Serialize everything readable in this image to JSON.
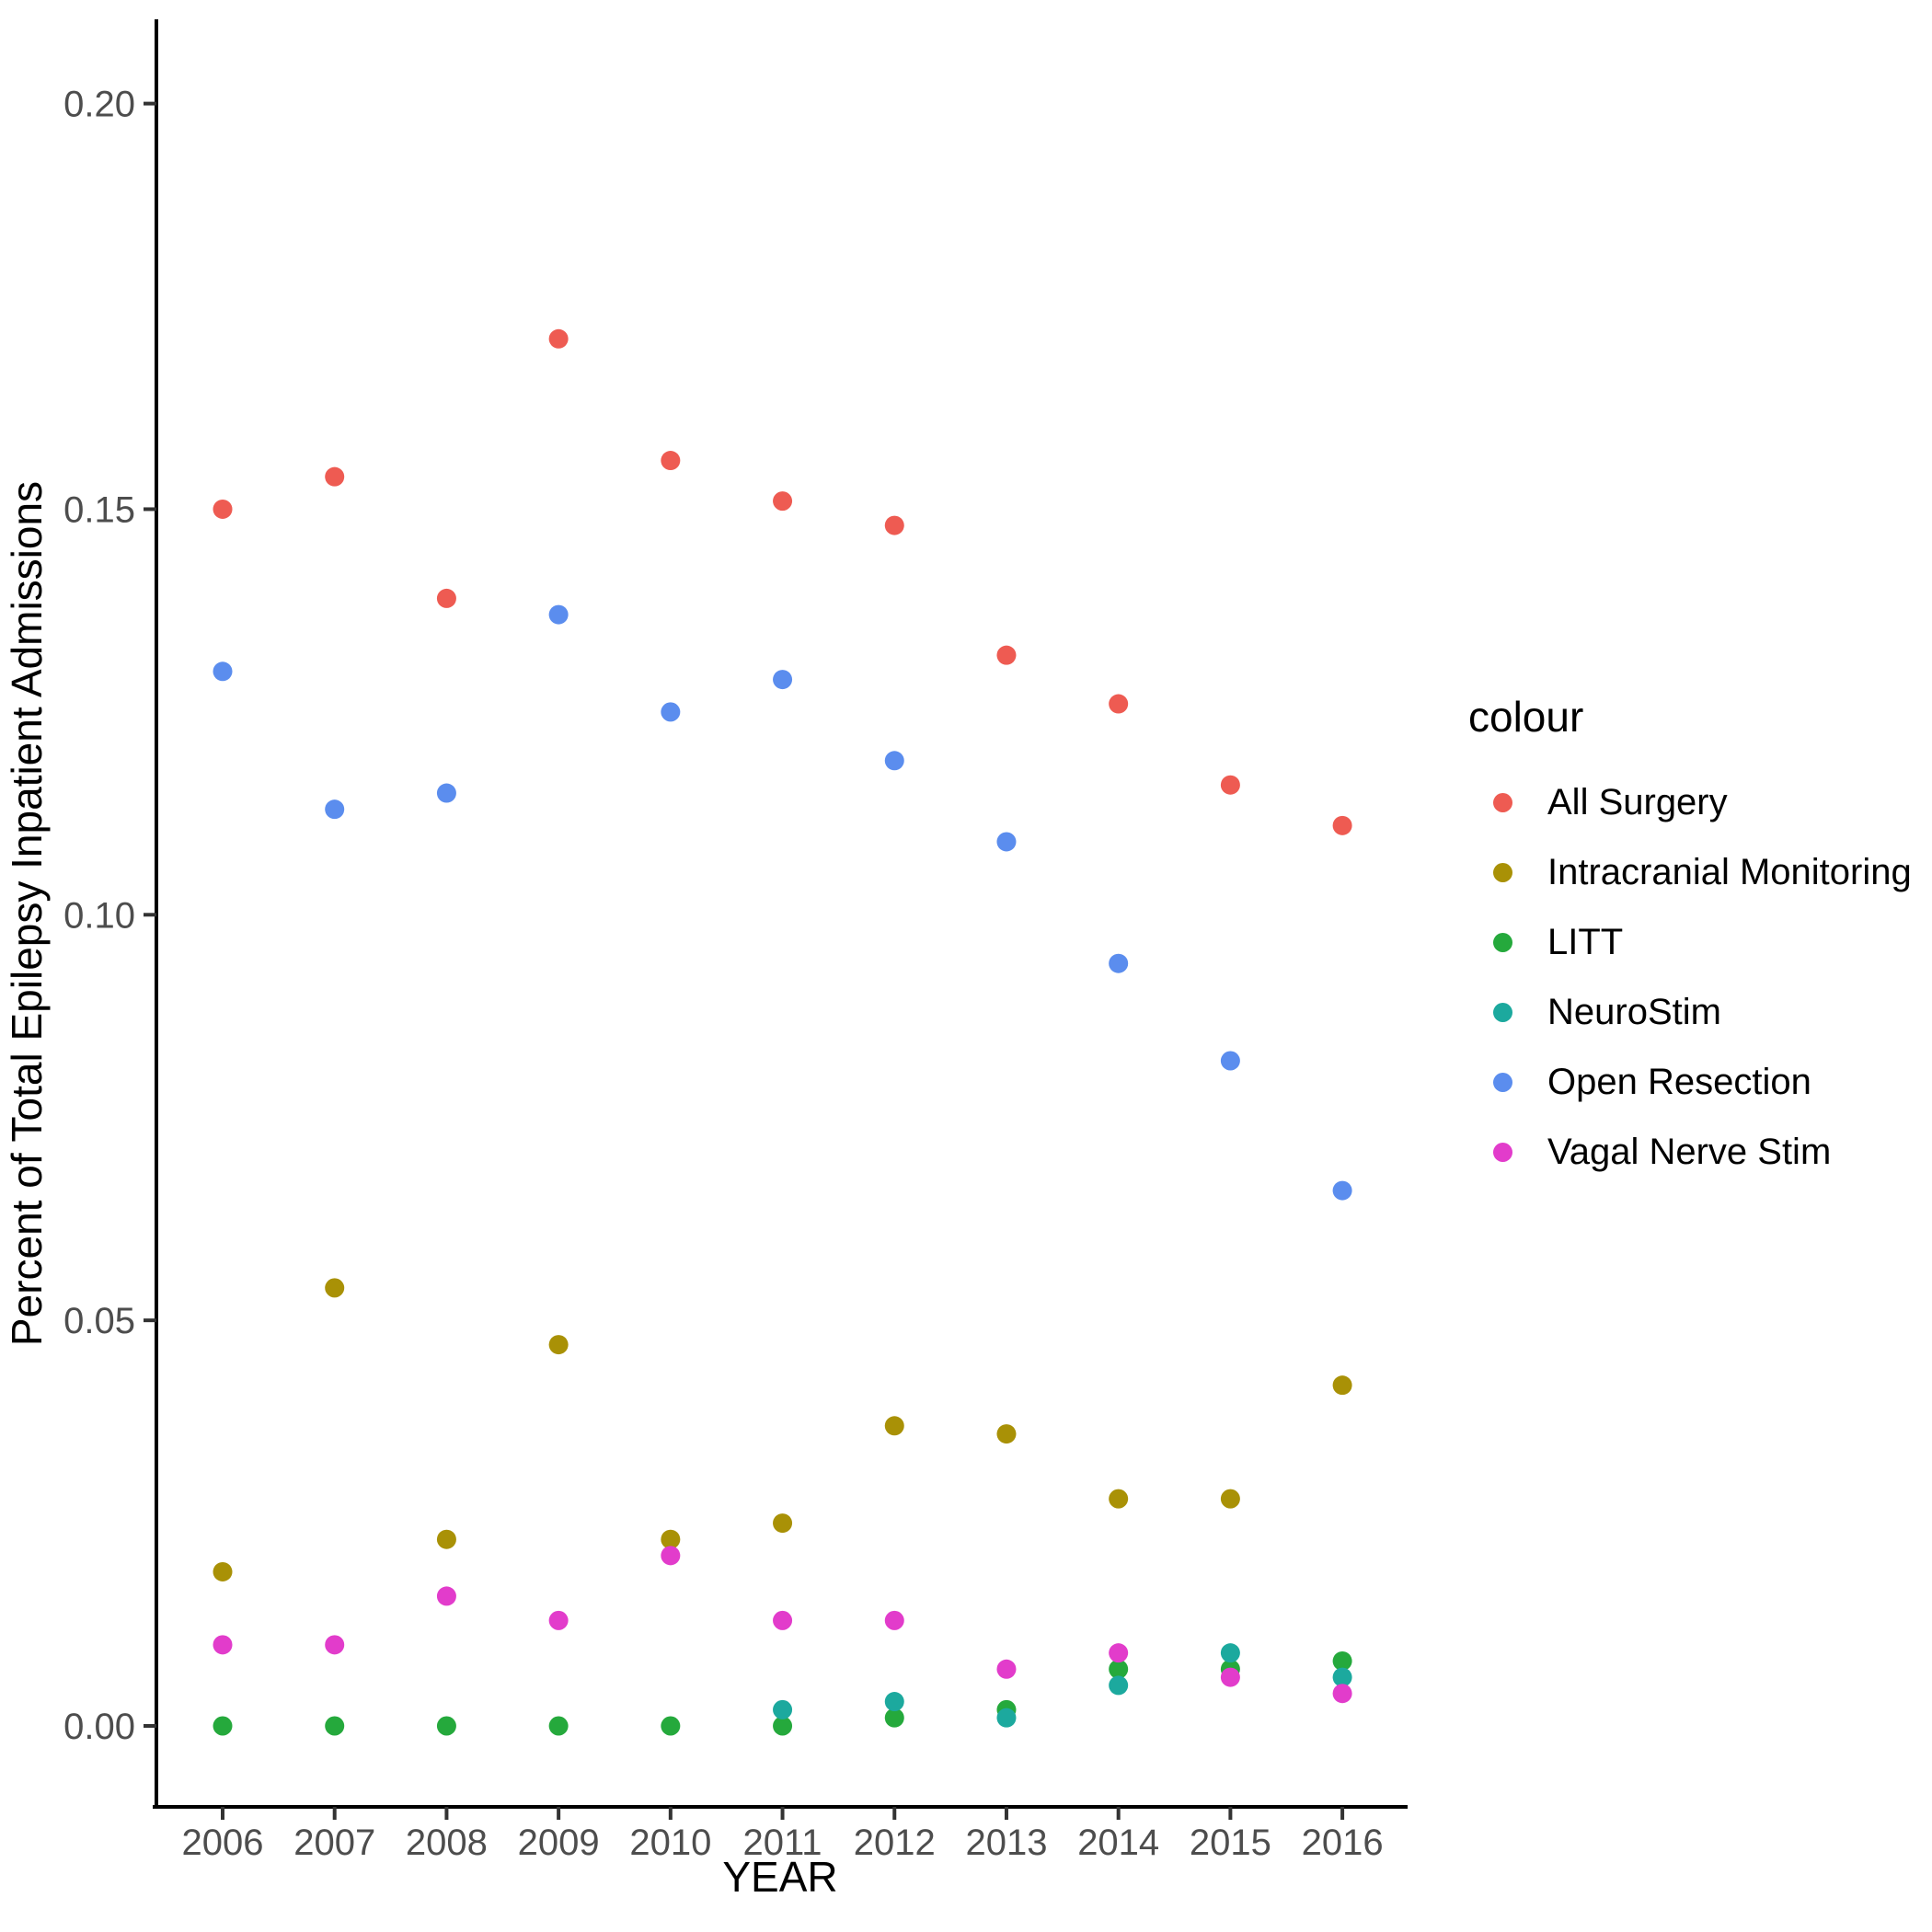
{
  "chart_data": {
    "type": "scatter",
    "x": [
      2006,
      2007,
      2008,
      2009,
      2010,
      2011,
      2012,
      2013,
      2014,
      2015,
      2016
    ],
    "xlabel": "YEAR",
    "ylabel": "Percent of Total Epilepsy Inpatient Admissions",
    "y_ticks": [
      0.0,
      0.05,
      0.1,
      0.15,
      0.2
    ],
    "ylim": [
      -0.01,
      0.212
    ],
    "grid": false,
    "legend_title": "colour",
    "legend_position": "right",
    "point_radius_px": 10.5,
    "series": [
      {
        "name": "All Surgery",
        "color": "#EE5B52",
        "values": [
          0.15,
          0.154,
          0.139,
          0.171,
          0.156,
          0.151,
          0.148,
          0.132,
          0.126,
          0.116,
          0.111
        ]
      },
      {
        "name": "Intracranial Monitoring",
        "color": "#A99106",
        "values": [
          0.019,
          0.054,
          0.023,
          0.047,
          0.023,
          0.025,
          0.037,
          0.036,
          0.028,
          0.028,
          0.042
        ]
      },
      {
        "name": "LITT",
        "color": "#25A93C",
        "values": [
          0.0,
          0.0,
          0.0,
          0.0,
          0.0,
          0.0,
          0.001,
          0.002,
          0.007,
          0.007,
          0.008
        ]
      },
      {
        "name": "NeuroStim",
        "color": "#1CA99E",
        "values": [
          null,
          null,
          null,
          null,
          null,
          0.002,
          0.003,
          0.001,
          0.005,
          0.009,
          0.006
        ]
      },
      {
        "name": "Open Resection",
        "color": "#5B8DEE",
        "values": [
          0.13,
          0.113,
          0.115,
          0.137,
          0.125,
          0.129,
          0.119,
          0.109,
          0.094,
          0.082,
          0.066
        ]
      },
      {
        "name": "Vagal Nerve Stim",
        "color": "#E23CCB",
        "values": [
          0.01,
          0.01,
          0.016,
          0.013,
          0.021,
          0.013,
          0.013,
          0.007,
          0.009,
          0.006,
          0.004
        ]
      }
    ],
    "colors": {
      "axis_line": "#000000",
      "tick_text": "#4d4d4d",
      "background": "#ffffff"
    }
  }
}
